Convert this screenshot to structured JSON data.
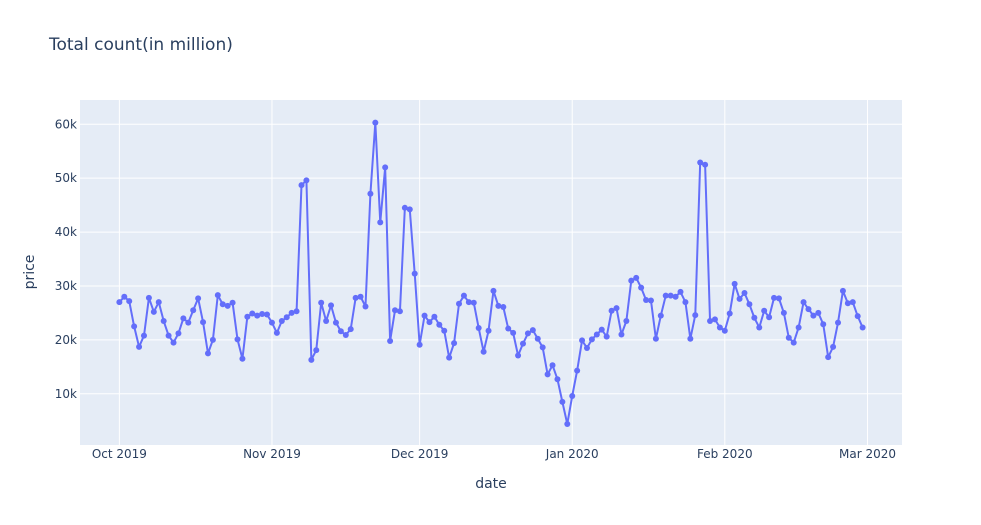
{
  "chart_data": {
    "type": "line",
    "title": "Total count(in million)",
    "xlabel": "date",
    "ylabel": "price",
    "x_start": "2019-10-01",
    "x_ticks": [
      {
        "label": "Oct 2019",
        "date": "2019-10-01"
      },
      {
        "label": "Nov 2019",
        "date": "2019-11-01"
      },
      {
        "label": "Dec 2019",
        "date": "2019-12-01"
      },
      {
        "label": "Jan 2020",
        "date": "2020-01-01"
      },
      {
        "label": "Feb 2020",
        "date": "2020-02-01"
      },
      {
        "label": "Mar 2020",
        "date": "2020-03-01"
      }
    ],
    "x_range": [
      "2019-09-23",
      "2020-03-08"
    ],
    "y_ticks": [
      {
        "label": "10k",
        "value": 10000
      },
      {
        "label": "20k",
        "value": 20000
      },
      {
        "label": "30k",
        "value": 30000
      },
      {
        "label": "40k",
        "value": 40000
      },
      {
        "label": "50k",
        "value": 50000
      },
      {
        "label": "60k",
        "value": 60000
      }
    ],
    "ylim": [
      500,
      64500
    ],
    "grid": true,
    "background": "#e5ecf6",
    "color": "#636efa",
    "series": [
      {
        "values": [
          27000,
          28000,
          27200,
          22500,
          18700,
          20800,
          27800,
          25200,
          27000,
          23500,
          20800,
          19500,
          21200,
          24000,
          23200,
          25500,
          27700,
          23300,
          17500,
          20000,
          28300,
          26600,
          26300,
          26900,
          20100,
          16500,
          24300,
          24900,
          24500,
          24800,
          24700,
          23200,
          21300,
          23500,
          24200,
          25000,
          25300,
          48700,
          49600,
          16300,
          18100,
          26900,
          23500,
          26400,
          23200,
          21600,
          20900,
          22000,
          27800,
          28000,
          26200,
          47100,
          60300,
          41800,
          52000,
          19800,
          25500,
          25300,
          44500,
          44200,
          32300,
          19100,
          24500,
          23300,
          24300,
          22800,
          21700,
          16700,
          19400,
          26700,
          28200,
          27000,
          26900,
          22200,
          17800,
          21700,
          29100,
          26300,
          26100,
          22100,
          21300,
          17100,
          19300,
          21200,
          21800,
          20200,
          18600,
          13600,
          15300,
          12700,
          8500,
          4400,
          9600,
          14300,
          19900,
          18500,
          20100,
          21000,
          21900,
          20600,
          25400,
          25900,
          21000,
          23500,
          31000,
          31500,
          29700,
          27400,
          27300,
          20200,
          24500,
          28200,
          28200,
          28000,
          28900,
          27000,
          20200,
          24600,
          52900,
          52500,
          23500,
          23800,
          22300,
          21700,
          24900,
          30400,
          27600,
          28700,
          26600,
          24100,
          22300,
          25400,
          24200,
          27800,
          27700,
          25000,
          20400,
          19500,
          22300,
          27000,
          25700,
          24500,
          25000,
          22900,
          16800,
          18700,
          23200,
          29100,
          26800,
          27000,
          24400,
          22300
        ]
      }
    ]
  }
}
